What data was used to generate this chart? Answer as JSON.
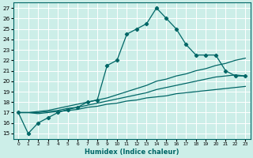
{
  "xlabel": "Humidex (Indice chaleur)",
  "bg_color": "#cceee8",
  "grid_color": "#ffffff",
  "line_color": "#006666",
  "xlim": [
    -0.5,
    23.5
  ],
  "ylim": [
    14.5,
    27.5
  ],
  "x_ticks": [
    0,
    1,
    2,
    3,
    4,
    5,
    6,
    7,
    8,
    9,
    10,
    11,
    12,
    13,
    14,
    15,
    16,
    17,
    18,
    19,
    20,
    21,
    22,
    23
  ],
  "y_ticks": [
    15,
    16,
    17,
    18,
    19,
    20,
    21,
    22,
    23,
    24,
    25,
    26,
    27
  ],
  "series1_x": [
    0,
    1,
    2,
    3,
    4,
    5,
    6,
    7,
    8,
    9,
    10,
    11,
    12,
    13,
    14,
    15,
    16,
    17,
    18,
    19,
    20,
    21,
    22,
    23
  ],
  "series1_y": [
    17,
    15,
    16,
    16.5,
    17,
    17.3,
    17.5,
    18,
    18.2,
    21.5,
    22,
    24.5,
    25,
    25.5,
    27,
    26,
    25,
    23.5,
    22.5,
    22.5,
    22.5,
    21,
    20.5,
    20.5
  ],
  "line2_x": [
    0,
    1,
    2,
    3,
    4,
    5,
    6,
    7,
    8,
    9,
    10,
    11,
    12,
    13,
    14,
    15,
    16,
    17,
    18,
    19,
    20,
    21,
    22,
    23
  ],
  "line2_y": [
    17,
    17,
    17.1,
    17.2,
    17.4,
    17.6,
    17.8,
    18.0,
    18.2,
    18.4,
    18.7,
    19.0,
    19.3,
    19.6,
    20.0,
    20.2,
    20.5,
    20.7,
    21.0,
    21.2,
    21.5,
    21.7,
    22.0,
    22.2
  ],
  "line3_x": [
    0,
    1,
    2,
    3,
    4,
    5,
    6,
    7,
    8,
    9,
    10,
    11,
    12,
    13,
    14,
    15,
    16,
    17,
    18,
    19,
    20,
    21,
    22,
    23
  ],
  "line3_y": [
    17,
    17,
    17.0,
    17.1,
    17.2,
    17.4,
    17.5,
    17.7,
    17.9,
    18.1,
    18.3,
    18.5,
    18.7,
    18.9,
    19.2,
    19.4,
    19.6,
    19.8,
    20.0,
    20.2,
    20.4,
    20.5,
    20.6,
    20.5
  ],
  "line4_x": [
    0,
    1,
    2,
    3,
    4,
    5,
    6,
    7,
    8,
    9,
    10,
    11,
    12,
    13,
    14,
    15,
    16,
    17,
    18,
    19,
    20,
    21,
    22,
    23
  ],
  "line4_y": [
    17,
    17,
    16.9,
    17.0,
    17.1,
    17.2,
    17.3,
    17.5,
    17.6,
    17.8,
    17.9,
    18.1,
    18.2,
    18.4,
    18.5,
    18.6,
    18.8,
    18.9,
    19.0,
    19.1,
    19.2,
    19.3,
    19.4,
    19.5
  ]
}
